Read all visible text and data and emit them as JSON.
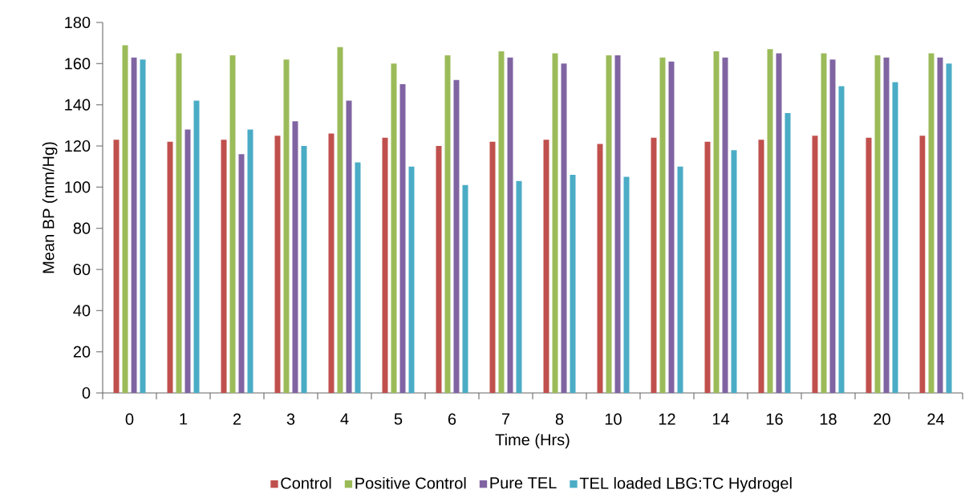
{
  "chart_data": {
    "type": "bar",
    "xlabel": "Time (Hrs)",
    "ylabel": "Mean BP (mm/Hg)",
    "categories": [
      "0",
      "1",
      "2",
      "3",
      "4",
      "5",
      "6",
      "7",
      "8",
      "10",
      "12",
      "14",
      "16",
      "18",
      "20",
      "24"
    ],
    "series": [
      {
        "name": "Control",
        "color": "#c0504d",
        "values": [
          123,
          122,
          123,
          125,
          126,
          124,
          120,
          122,
          123,
          121,
          124,
          122,
          123,
          125,
          124,
          125
        ]
      },
      {
        "name": "Positive Control",
        "color": "#9bbb59",
        "values": [
          169,
          165,
          164,
          162,
          168,
          160,
          164,
          166,
          165,
          164,
          163,
          166,
          167,
          165,
          164,
          165
        ]
      },
      {
        "name": "Pure TEL",
        "color": "#8064a2",
        "values": [
          163,
          128,
          116,
          132,
          142,
          150,
          152,
          163,
          160,
          164,
          161,
          163,
          165,
          162,
          163,
          163
        ]
      },
      {
        "name": "TEL loaded LBG:TC Hydrogel",
        "color": "#4bacc6",
        "values": [
          162,
          142,
          128,
          120,
          112,
          110,
          101,
          103,
          106,
          105,
          110,
          118,
          136,
          149,
          151,
          160
        ]
      }
    ],
    "ylim": [
      0,
      180
    ],
    "yticks": [
      0,
      20,
      40,
      60,
      80,
      100,
      120,
      140,
      160,
      180
    ],
    "legend": "bottom"
  }
}
